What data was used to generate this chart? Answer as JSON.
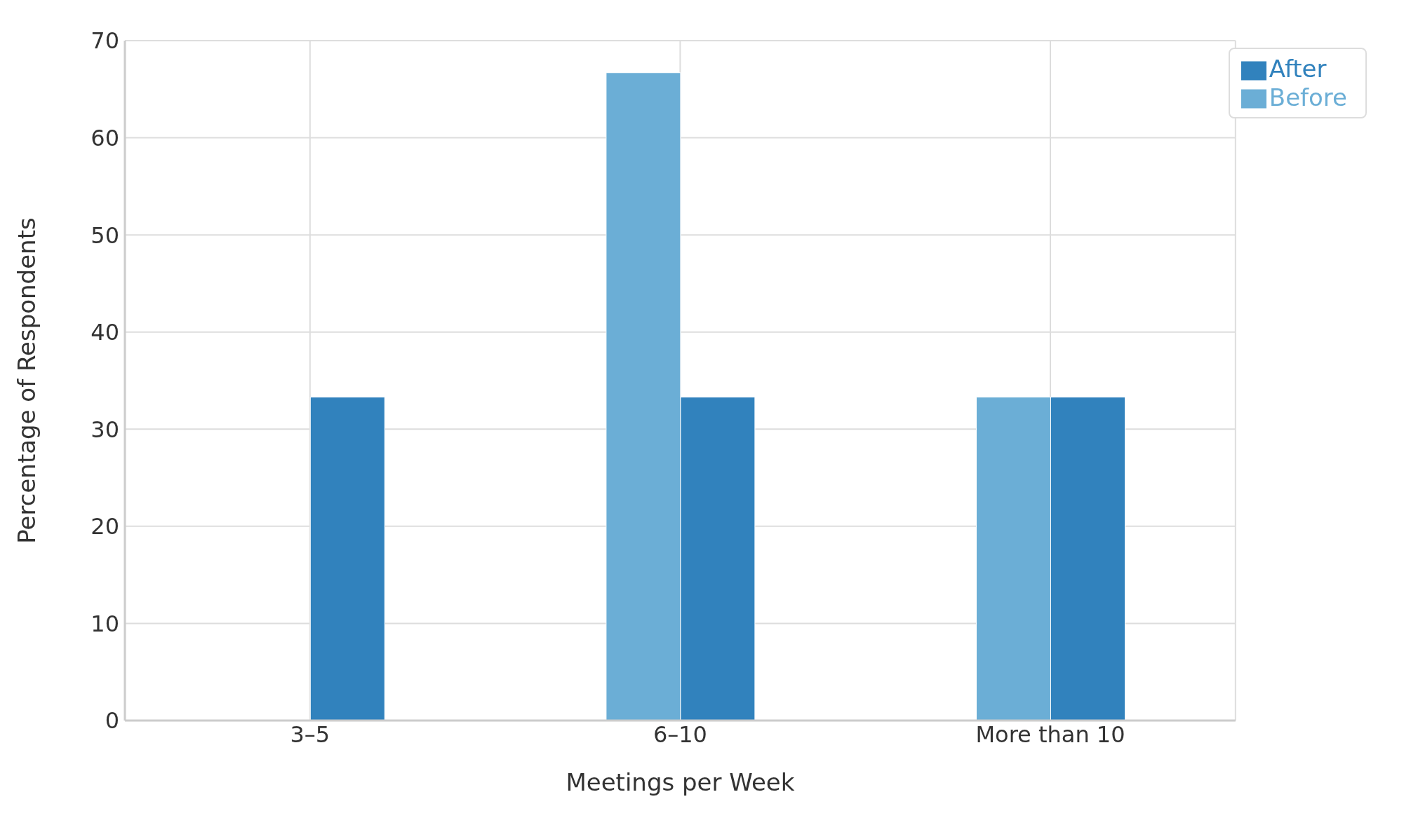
{
  "chart_data": {
    "type": "bar",
    "xlabel": "Meetings per Week",
    "ylabel": "Percentage of Respondents",
    "categories": [
      "3–5",
      "6–10",
      "More than 10"
    ],
    "series": [
      {
        "name": "Before",
        "color": "#6baed6",
        "values": [
          0,
          66.7,
          33.3
        ]
      },
      {
        "name": "After",
        "color": "#3182bd",
        "values": [
          33.3,
          33.3,
          33.3
        ]
      }
    ],
    "ylim": [
      0,
      70
    ],
    "yticks": [
      0,
      10,
      20,
      30,
      40,
      50,
      60,
      70
    ],
    "grid": true,
    "legend": "top right"
  }
}
